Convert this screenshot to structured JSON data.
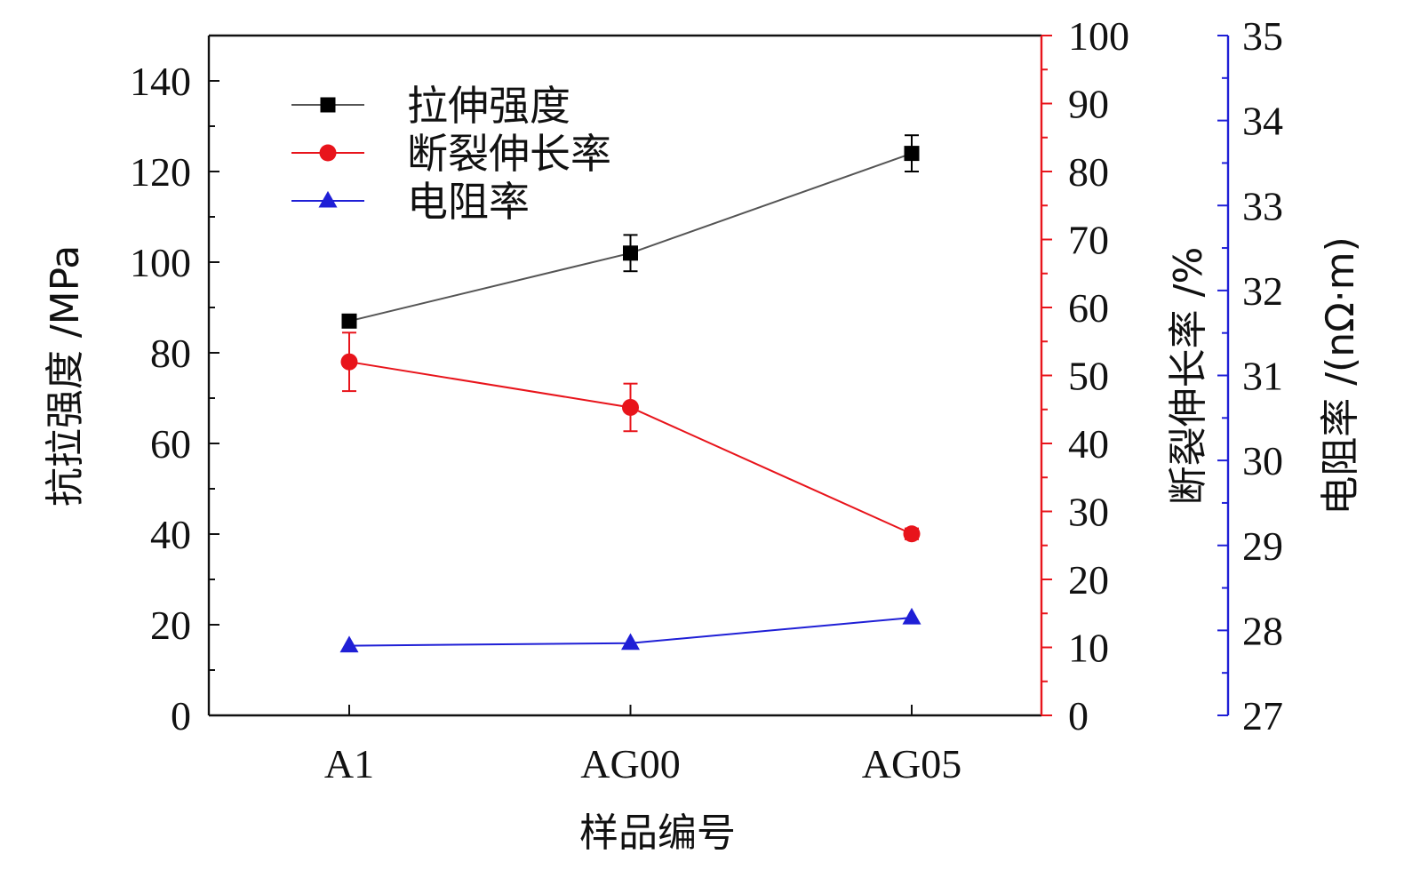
{
  "chart_data": {
    "type": "line",
    "categories": [
      "A1",
      "AG00",
      "AG05"
    ],
    "xlabel": "样品编号",
    "axes": {
      "left": {
        "label": "抗拉强度 /MPa",
        "range": [
          0,
          150
        ],
        "ticks": [
          0,
          20,
          40,
          60,
          80,
          100,
          120,
          140
        ],
        "minor_step": 10,
        "color": "#111111"
      },
      "right1": {
        "label": "断裂伸长率 /%",
        "range": [
          0,
          100
        ],
        "ticks": [
          0,
          10,
          20,
          30,
          40,
          50,
          60,
          70,
          80,
          90,
          100
        ],
        "minor_step": 5,
        "color": "#e8141b"
      },
      "right2": {
        "label": "电阻率 /(nΩ·m)",
        "range": [
          27,
          35
        ],
        "ticks": [
          27,
          28,
          29,
          30,
          31,
          32,
          33,
          34,
          35
        ],
        "minor_step": 0.5,
        "color": "#1f1fd6"
      }
    },
    "series": [
      {
        "name": "拉伸强度",
        "axis": "left",
        "values": [
          87,
          102,
          124
        ],
        "errors": [
          0,
          4,
          4
        ],
        "marker": "square",
        "color": "#000000",
        "line_color": "#555555"
      },
      {
        "name": "断裂伸长率",
        "axis": "right1",
        "values": [
          52,
          45.3,
          26.7
        ],
        "errors": [
          4.3,
          3.5,
          0.8
        ],
        "marker": "circle",
        "color": "#e8141b",
        "line_color": "#e8141b"
      },
      {
        "name": "电阻率",
        "axis": "right2",
        "values": [
          27.82,
          27.85,
          28.15
        ],
        "errors": [
          0,
          0,
          0
        ],
        "marker": "triangle",
        "color": "#1f1fd6",
        "line_color": "#1f1fd6"
      }
    ],
    "legend_position": "top-left",
    "grid": false
  }
}
